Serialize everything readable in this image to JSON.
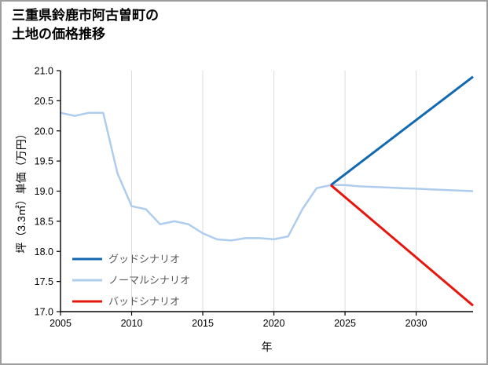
{
  "chart_data": {
    "type": "line",
    "title": "三重県鈴鹿市阿古曽町の\n土地の価格推移",
    "xlabel": "年",
    "ylabel": "坪（3.3㎡）単価（万円）",
    "xlim": [
      2005,
      2034
    ],
    "ylim": [
      17.0,
      21.0
    ],
    "grid": "vertical",
    "xticks": {
      "values": [
        2005,
        2010,
        2015,
        2020,
        2025,
        2030
      ],
      "labels": [
        "2005",
        "2010",
        "2015",
        "2020",
        "2025",
        "2030"
      ]
    },
    "yticks": {
      "values": [
        17.0,
        17.5,
        18.0,
        18.5,
        19.0,
        19.5,
        20.0,
        20.5,
        21.0
      ],
      "labels": [
        "17.0",
        "17.5",
        "18.0",
        "18.5",
        "19.0",
        "19.5",
        "20.0",
        "20.5",
        "21.0"
      ]
    },
    "legend": {
      "position": "lower-left",
      "entries": [
        "グッドシナリオ",
        "ノーマルシナリオ",
        "バッドシナリオ"
      ],
      "text_color": "#595959"
    },
    "colors": {
      "good": "#1169b4",
      "normal": "#aecdee",
      "bad": "#e8150c",
      "grid": "#dcdcdc",
      "axis": "#000000"
    },
    "series": [
      {
        "name": "ノーマルシナリオ",
        "color": "#aecdee",
        "line_width": 2.5,
        "x": [
          2005,
          2006,
          2007,
          2008,
          2009,
          2010,
          2011,
          2012,
          2013,
          2014,
          2015,
          2016,
          2017,
          2018,
          2019,
          2020,
          2021,
          2022,
          2023,
          2024,
          2025,
          2026,
          2027,
          2028,
          2029,
          2030,
          2031,
          2032,
          2033,
          2034
        ],
        "values": [
          20.3,
          20.25,
          20.3,
          20.3,
          19.3,
          18.75,
          18.7,
          18.45,
          18.5,
          18.45,
          18.3,
          18.2,
          18.18,
          18.22,
          18.22,
          18.2,
          18.25,
          18.7,
          19.05,
          19.1,
          19.1,
          19.08,
          19.07,
          19.06,
          19.05,
          19.04,
          19.03,
          19.02,
          19.01,
          19.0
        ]
      },
      {
        "name": "グッドシナリオ",
        "color": "#1169b4",
        "line_width": 3,
        "x": [
          2024,
          2034
        ],
        "values": [
          19.1,
          20.9
        ]
      },
      {
        "name": "バッドシナリオ",
        "color": "#e8150c",
        "line_width": 3,
        "x": [
          2024,
          2034
        ],
        "values": [
          19.1,
          17.1
        ]
      }
    ]
  }
}
